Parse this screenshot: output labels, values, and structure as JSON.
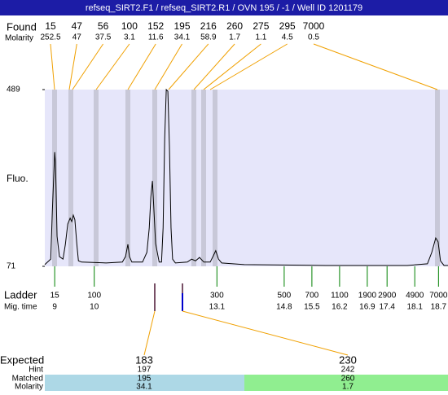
{
  "title": "refseq_SIRT2.F1 / refseq_SIRT2.R1 / OVN 195 / -1 / Well ID 1201179",
  "found": {
    "label": "Found",
    "molarity_label": "Molarity",
    "sizes": [
      15,
      47,
      56,
      100,
      152,
      195,
      216,
      260,
      275,
      295,
      7000
    ],
    "molarity": [
      252.5,
      47,
      37.5,
      3.1,
      11.6,
      34.1,
      58.9,
      1.7,
      1.1,
      4.5,
      0.5
    ]
  },
  "chart_data": {
    "type": "line",
    "ylabel": "Fluo.",
    "ylim": [
      71,
      489
    ],
    "yticks": [
      71,
      489
    ],
    "xlim": [
      8.75,
      18.94
    ],
    "x": [
      8.75,
      8.9,
      8.94,
      9.0,
      9.02,
      9.06,
      9.12,
      9.21,
      9.27,
      9.33,
      9.39,
      9.43,
      9.47,
      9.51,
      9.56,
      9.6,
      9.68,
      10.3,
      10.71,
      10.79,
      10.85,
      10.89,
      10.95,
      11.22,
      11.33,
      11.39,
      11.43,
      11.47,
      11.51,
      11.55,
      11.64,
      11.7,
      11.74,
      11.78,
      11.82,
      11.86,
      11.9,
      11.94,
      11.98,
      12.05,
      12.35,
      12.46,
      12.56,
      12.66,
      12.77,
      12.93,
      13.01,
      13.07,
      13.14,
      13.22,
      13.79,
      15.85,
      17.91,
      18.42,
      18.53,
      18.63,
      18.69,
      18.75,
      18.84,
      18.94
    ],
    "series": [
      {
        "color": "#000000",
        "values": [
          75,
          88,
          200,
          341,
          316,
          142,
          94,
          88,
          123,
          171,
          185,
          177,
          192,
          181,
          123,
          84,
          81,
          79,
          81,
          94,
          123,
          94,
          81,
          81,
          104,
          162,
          235,
          273,
          200,
          125,
          81,
          81,
          162,
          373,
          489,
          485,
          354,
          162,
          88,
          79,
          81,
          88,
          84,
          92,
          81,
          81,
          96,
          108,
          88,
          79,
          75,
          73,
          73,
          77,
          104,
          138,
          129,
          84,
          73,
          73
        ]
      }
    ],
    "ladder": {
      "label": "Ladder",
      "time_label": "Mig. time",
      "sizes": [
        15,
        100,
        300,
        500,
        700,
        1100,
        1900,
        2900,
        4900,
        7000
      ],
      "times": [
        9,
        10,
        13.1,
        14.8,
        15.5,
        16.2,
        16.9,
        17.4,
        18.1,
        18.7
      ]
    }
  },
  "expected": {
    "label": "Expected",
    "hint_label": "Hint",
    "matched_label": "Matched",
    "molarity_label": "Molarity",
    "columns": [
      {
        "expected": 183,
        "hint": 197,
        "matched": 195,
        "molarity": 34.1
      },
      {
        "expected": 230,
        "hint": 242,
        "matched": 260,
        "molarity": 1.7
      }
    ]
  }
}
